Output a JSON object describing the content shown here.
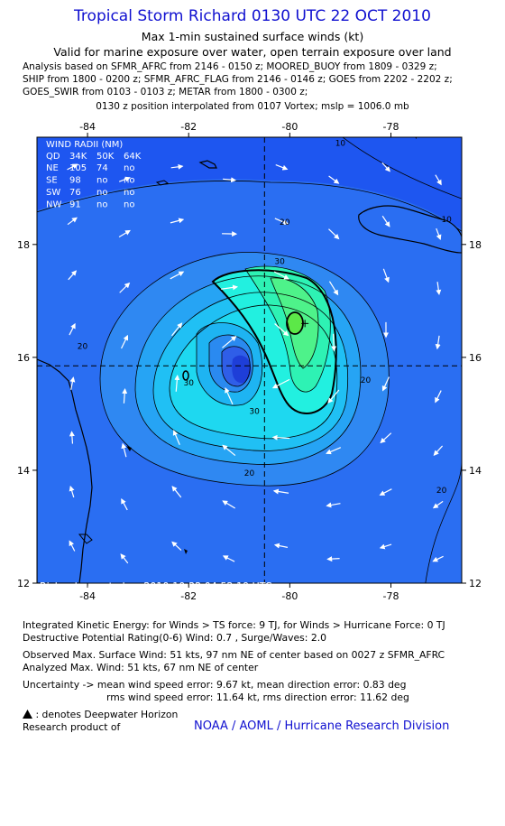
{
  "header": {
    "title": "Tropical Storm Richard 0130 UTC 22 OCT 2010",
    "subtitle": "Max 1-min sustained surface winds (kt)",
    "valid": "Valid for marine exposure over water, open terrain exposure over land",
    "analysis_lines": [
      "Analysis based on SFMR_AFRC from 2146 - 0150 z; MOORED_BUOY from 1809 - 0329 z;",
      "SHIP from 1800 - 0200 z; SFMR_AFRC_FLAG from 2146 - 0146 z; GOES from 2202 - 2202 z;",
      "GOES_SWIR from 0103 - 0103 z; METAR from 1800 - 0300 z;"
    ],
    "position": "0130 z position interpolated from 0107 Vortex; mslp = 1006.0 mb"
  },
  "chart_data": {
    "type": "contour",
    "title": "Tropical Storm Richard 0130 UTC 22 OCT 2010",
    "xlabel": "",
    "ylabel": "",
    "xlim": [
      -85,
      -76.6
    ],
    "ylim": [
      12,
      19.9
    ],
    "xticks": [
      -84,
      -82,
      -80,
      -78
    ],
    "yticks": [
      12,
      14,
      16,
      18
    ],
    "center": {
      "lon": -80.5,
      "lat": 15.85
    },
    "max_wind_location": {
      "lon": -79.7,
      "lat": 16.6
    },
    "contour_labels": [
      {
        "text": "10",
        "lon": -79.0,
        "lat": 19.75
      },
      {
        "text": "10",
        "lon": -76.9,
        "lat": 18.4
      },
      {
        "text": "20",
        "lon": -80.1,
        "lat": 18.35
      },
      {
        "text": "30",
        "lon": -80.2,
        "lat": 17.65
      },
      {
        "text": "20",
        "lon": -84.1,
        "lat": 16.15
      },
      {
        "text": "20",
        "lon": -78.5,
        "lat": 15.55
      },
      {
        "text": "30",
        "lon": -82.0,
        "lat": 15.5
      },
      {
        "text": "30",
        "lon": -80.7,
        "lat": 15.0
      },
      {
        "text": "20",
        "lon": -80.8,
        "lat": 13.9
      },
      {
        "text": "20",
        "lon": -77.0,
        "lat": 13.6
      }
    ],
    "wind_radii": {
      "heading": "WIND RADII (NM)",
      "columns": [
        "QD",
        "34K",
        "50K",
        "64K"
      ],
      "rows": [
        [
          "NE",
          "105",
          "74",
          "no"
        ],
        [
          "SE",
          "98",
          "no",
          "no"
        ],
        [
          "SW",
          "76",
          "no",
          "no"
        ],
        [
          "NW",
          "91",
          "no",
          "no"
        ]
      ]
    },
    "footer": "Richard - created on 2010-10-22 04:52:19 UTC",
    "colors": {
      "contour_line": "#000000",
      "arrow": "#ffffff",
      "crosshair": "#000000",
      "coast": "#000000"
    }
  },
  "stats": {
    "ike": "Integrated Kinetic Energy: for Winds > TS force: 9 TJ, for Winds > Hurricane Force: 0 TJ",
    "dpr": "Destructive Potential Rating(0-6) Wind: 0.7 , Surge/Waves: 2.0",
    "observed": "Observed Max. Surface Wind: 51 kts, 97 nm NE of center based on 0027 z SFMR_AFRC",
    "analyzed": "Analyzed Max. Wind: 51 kts, 67 nm NE of center",
    "uncertainty": "Uncertainty -> mean wind speed error: 9.67 kt,   mean direction error: 0.83 deg",
    "rms": "rms wind speed error: 11.64 kt,   rms direction error: 11.62 deg",
    "deepwater": ": denotes Deepwater Horizon",
    "research": "Research product of",
    "noaa": "NOAA / AOML / Hurricane Research Division"
  }
}
